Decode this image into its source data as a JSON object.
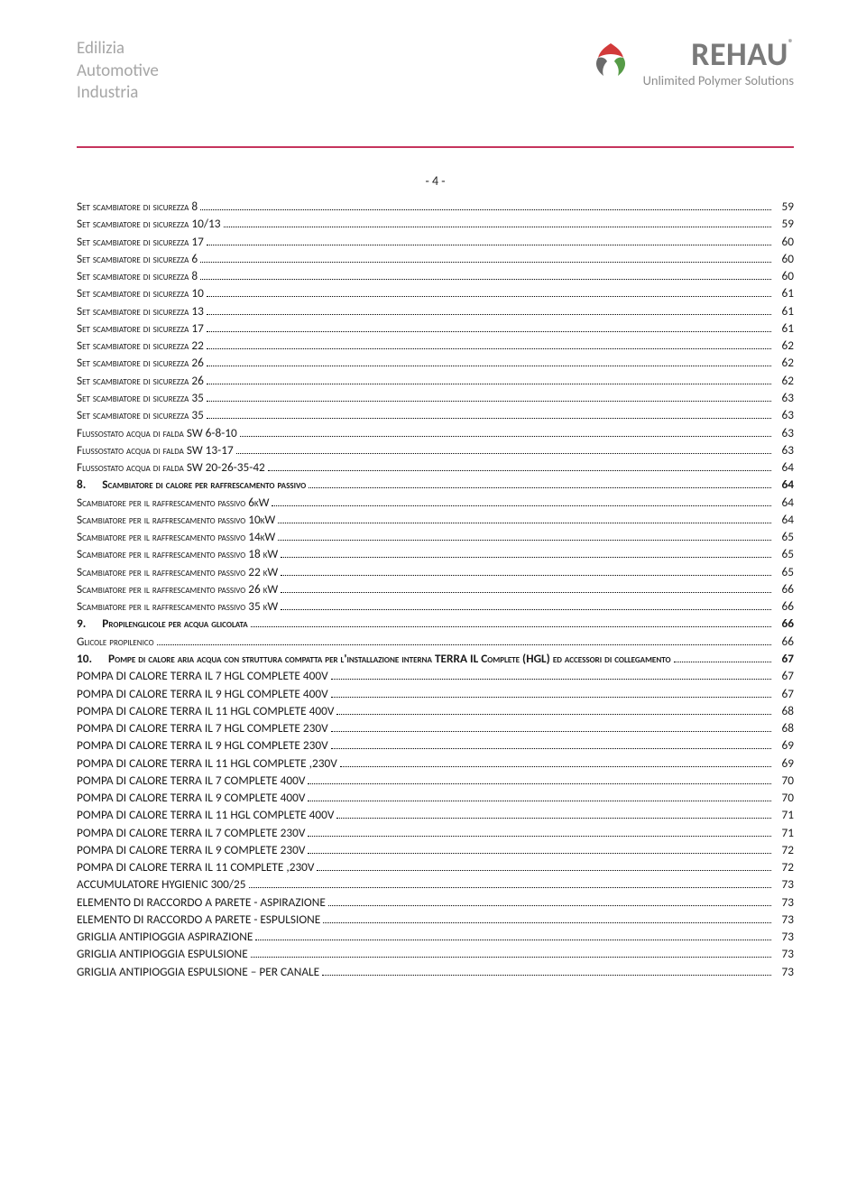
{
  "header": {
    "lines": [
      "Edilizia",
      "Automotive",
      "Industria"
    ],
    "brand": "REHAU",
    "trademark": "®",
    "tagline": "Unlimited Polymer Solutions",
    "logo_colors": {
      "top": "#d23a3a",
      "right": "#569b47",
      "bottom": "#6a6a6a"
    }
  },
  "page_number": "- 4 -",
  "rule_color": "#c6345d",
  "toc": [
    {
      "label": "Set scambiatore di sicurezza 8",
      "page": "59",
      "sc": true
    },
    {
      "label": "Set scambiatore di sicurezza 10/13",
      "page": "59",
      "sc": true
    },
    {
      "label": "Set scambiatore di sicurezza 17",
      "page": "60",
      "sc": true
    },
    {
      "label": "Set scambiatore di sicurezza 6",
      "page": "60",
      "sc": true
    },
    {
      "label": "Set scambiatore di sicurezza 8",
      "page": "60",
      "sc": true
    },
    {
      "label": "Set scambiatore di sicurezza 10",
      "page": "61",
      "sc": true
    },
    {
      "label": "Set scambiatore di sicurezza 13",
      "page": "61",
      "sc": true
    },
    {
      "label": "Set scambiatore di sicurezza 17",
      "page": "61",
      "sc": true
    },
    {
      "label": "Set scambiatore di sicurezza 22",
      "page": "62",
      "sc": true
    },
    {
      "label": "Set scambiatore di sicurezza 26",
      "page": "62",
      "sc": true
    },
    {
      "label": "Set scambiatore di sicurezza 26",
      "page": "62",
      "sc": true
    },
    {
      "label": "Set scambiatore di sicurezza 35",
      "page": "63",
      "sc": true
    },
    {
      "label": "Set scambiatore di sicurezza 35",
      "page": "63",
      "sc": true
    },
    {
      "label": "Flussostato acqua di falda SW 6-8-10",
      "page": "63",
      "sc": true
    },
    {
      "label": "Flussostato acqua di falda SW 13-17",
      "page": "63",
      "sc": true
    },
    {
      "label": "Flussostato acqua di falda SW 20-26-35-42",
      "page": "64",
      "sc": true
    },
    {
      "num": "8.",
      "label": "Scambiatore di calore per raffrescamento passivo",
      "page": "64",
      "heading": true
    },
    {
      "label": "Scambiatore per il raffrescamento passivo 6kW",
      "page": "64",
      "sc": true
    },
    {
      "label": "Scambiatore per il raffrescamento passivo 10kW",
      "page": "64",
      "sc": true
    },
    {
      "label": "Scambiatore per il raffrescamento passivo 14kW",
      "page": "65",
      "sc": true
    },
    {
      "label": "Scambiatore per il raffrescamento passivo 18 kW",
      "page": "65",
      "sc": true
    },
    {
      "label": "Scambiatore per il raffrescamento passivo 22 kW",
      "page": "65",
      "sc": true
    },
    {
      "label": "Scambiatore per il raffrescamento passivo 26 kW",
      "page": "66",
      "sc": true
    },
    {
      "label": "Scambiatore per il raffrescamento passivo 35 kW",
      "page": "66",
      "sc": true
    },
    {
      "num": "9.",
      "label": "Propilenglicole per acqua glicolata",
      "page": "66",
      "heading": true
    },
    {
      "label": "Glicole propilenico",
      "page": "66",
      "sc": true
    },
    {
      "num": "10.",
      "label": "Pompe di calore aria acqua con struttura compatta per l'installazione interna TERRA IL Complete (HGL) ed accessori di collegamento",
      "page": "67",
      "heading": true,
      "wrap": true
    },
    {
      "label": "POMPA DI CALORE TERRA IL 7 HGL COMPLETE 400V",
      "page": "67"
    },
    {
      "label": "POMPA DI CALORE TERRA IL 9 HGL COMPLETE 400V",
      "page": "67"
    },
    {
      "label": "POMPA DI CALORE TERRA IL 11 HGL COMPLETE 400V",
      "page": "68"
    },
    {
      "label": "POMPA DI CALORE TERRA IL 7 HGL COMPLETE 230V",
      "page": "68"
    },
    {
      "label": "POMPA DI CALORE TERRA IL 9 HGL COMPLETE 230V",
      "page": "69"
    },
    {
      "label": "POMPA DI CALORE TERRA IL 11 HGL COMPLETE ,230V",
      "page": "69"
    },
    {
      "label": "POMPA DI CALORE TERRA IL 7 COMPLETE 400V",
      "page": "70"
    },
    {
      "label": "POMPA DI CALORE TERRA IL 9 COMPLETE 400V",
      "page": "70"
    },
    {
      "label": "POMPA DI CALORE TERRA IL 11 HGL COMPLETE 400V",
      "page": "71"
    },
    {
      "label": "POMPA DI CALORE TERRA IL 7 COMPLETE 230V",
      "page": "71"
    },
    {
      "label": "POMPA DI CALORE TERRA IL 9 COMPLETE 230V",
      "page": "72"
    },
    {
      "label": "POMPA DI CALORE TERRA IL 11  COMPLETE ,230V",
      "page": "72"
    },
    {
      "label": "ACCUMULATORE HYGIENIC 300/25",
      "page": "73"
    },
    {
      "label": "ELEMENTO DI RACCORDO A PARETE - ASPIRAZIONE",
      "page": "73"
    },
    {
      "label": "ELEMENTO DI RACCORDO A PARETE - ESPULSIONE",
      "page": "73"
    },
    {
      "label": "GRIGLIA ANTIPIOGGIA ASPIRAZIONE",
      "page": "73"
    },
    {
      "label": "GRIGLIA ANTIPIOGGIA ESPULSIONE",
      "page": "73"
    },
    {
      "label": "GRIGLIA ANTIPIOGGIA ESPULSIONE – PER CANALE",
      "page": "73"
    }
  ]
}
